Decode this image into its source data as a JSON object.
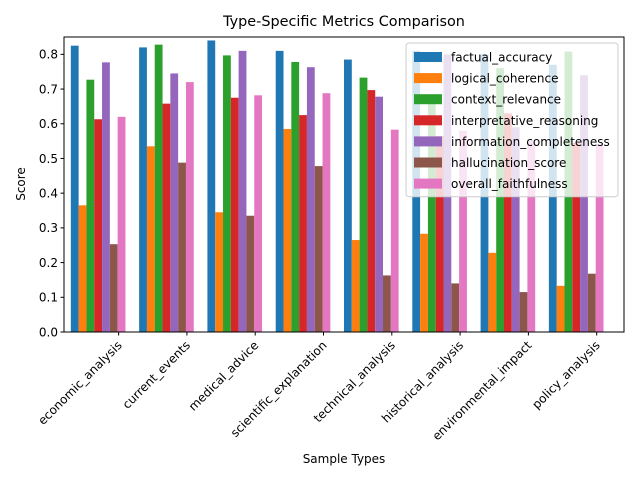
{
  "chart_data": {
    "type": "bar",
    "title": "Type-Specific Metrics Comparison",
    "xlabel": "Sample Types",
    "ylabel": "Score",
    "ylim": [
      0,
      0.85
    ],
    "yticks": [
      0.0,
      0.1,
      0.2,
      0.3,
      0.4,
      0.5,
      0.6,
      0.7,
      0.8
    ],
    "ytick_labels": [
      "0.0",
      "0.1",
      "0.2",
      "0.3",
      "0.4",
      "0.5",
      "0.6",
      "0.7",
      "0.8"
    ],
    "legend_position": "top-right",
    "grid": false,
    "categories": [
      "economic_analysis",
      "current_events",
      "medical_advice",
      "scientific_explanation",
      "technical_analysis",
      "historical_analysis",
      "environmental_impact",
      "policy_analysis"
    ],
    "series": [
      {
        "name": "factual_accuracy",
        "color": "#1f77b4",
        "values": [
          0.825,
          0.82,
          0.84,
          0.81,
          0.785,
          0.81,
          0.8,
          0.77
        ]
      },
      {
        "name": "logical_coherence",
        "color": "#ff7f0e",
        "values": [
          0.365,
          0.535,
          0.345,
          0.585,
          0.265,
          0.283,
          0.228,
          0.133
        ]
      },
      {
        "name": "context_relevance",
        "color": "#2ca02c",
        "values": [
          0.727,
          0.828,
          0.797,
          0.778,
          0.733,
          0.665,
          0.76,
          0.808
        ]
      },
      {
        "name": "interpretative_reasoning",
        "color": "#d62728",
        "values": [
          0.613,
          0.658,
          0.675,
          0.625,
          0.697,
          0.565,
          0.63,
          0.545
        ]
      },
      {
        "name": "information_completeness",
        "color": "#9467bd",
        "values": [
          0.777,
          0.745,
          0.81,
          0.763,
          0.678,
          0.8,
          0.59,
          0.74
        ]
      },
      {
        "name": "hallucination_score",
        "color": "#8c564b",
        "values": [
          0.253,
          0.488,
          0.335,
          0.478,
          0.163,
          0.14,
          0.115,
          0.168
        ]
      },
      {
        "name": "overall_faithfulness",
        "color": "#e377c2",
        "values": [
          0.62,
          0.72,
          0.682,
          0.688,
          0.583,
          0.58,
          0.55,
          0.54
        ]
      }
    ]
  }
}
